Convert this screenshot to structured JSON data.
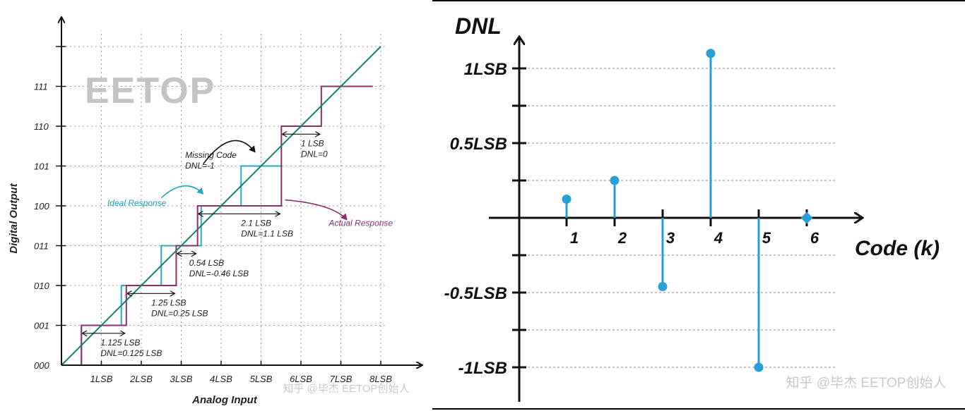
{
  "chart_data": [
    {
      "type": "line",
      "title": "",
      "xlabel": "Analog Input",
      "ylabel": "Digital Output",
      "watermark_logo": "EETOP",
      "x_tick_labels": [
        "1LSB",
        "2LSB",
        "3LSB",
        "4LSB",
        "5LSB",
        "6LSB",
        "7LSB",
        "8LSB"
      ],
      "y_tick_labels": [
        "000",
        "001",
        "010",
        "011",
        "100",
        "101",
        "110",
        "111"
      ],
      "xlim": [
        0,
        8
      ],
      "ylim": [
        0,
        8
      ],
      "grid": true,
      "series": [
        {
          "name": "Ideal Response",
          "color": "#0f7f6e",
          "x": [
            0,
            8
          ],
          "y": [
            0,
            8
          ]
        },
        {
          "name": "Actual Response",
          "color": "#8e2f6c",
          "x": [
            0.5,
            0.5,
            1.625,
            1.625,
            2.875,
            2.875,
            3.41,
            3.41,
            5.51,
            5.51,
            6.51,
            6.51,
            7.8
          ],
          "y": [
            0,
            1,
            1,
            2,
            2,
            3,
            3,
            4,
            4,
            6,
            6,
            7,
            7
          ]
        },
        {
          "name": "",
          "color": "#2ba8c4",
          "x": [
            0.5,
            0.5,
            1.5,
            1.5,
            2.5,
            2.5,
            3.5,
            3.5,
            4.5,
            4.5,
            5.5
          ],
          "y": [
            0,
            1,
            1,
            2,
            2,
            3,
            3,
            4,
            4,
            5,
            5
          ]
        }
      ],
      "annotations": [
        {
          "lines": [
            "1.125 LSB",
            "DNL=0.125 LSB"
          ],
          "x": 0.98,
          "y": 0.5
        },
        {
          "lines": [
            "1.25 LSB",
            "DNL=0.25 LSB"
          ],
          "x": 2.25,
          "y": 1.5
        },
        {
          "lines": [
            "0.54 LSB",
            "DNL=-0.46 LSB"
          ],
          "x": 3.2,
          "y": 2.5
        },
        {
          "lines": [
            "2.1 LSB",
            "DNL=1.1 LSB"
          ],
          "x": 4.5,
          "y": 3.5
        },
        {
          "lines": [
            "1 LSB",
            "DNL=0"
          ],
          "x": 6.0,
          "y": 5.5
        },
        {
          "lines": [
            "Missing Code",
            "DNL=-1"
          ],
          "x": 3.1,
          "y": 5.2
        },
        {
          "lines": [
            "Ideal Response"
          ],
          "x": 1.15,
          "y": 4.0
        },
        {
          "lines": [
            "Actual Response"
          ],
          "x": 7.5,
          "y": 3.5
        }
      ]
    },
    {
      "type": "stem",
      "title": "",
      "xlabel": "Code (k)",
      "ylabel": "DNL",
      "x_tick_labels": [
        "1",
        "2",
        "3",
        "4",
        "5",
        "6"
      ],
      "y_tick_labels": [
        "1LSB",
        "0.5LSB",
        "-0.5LSB",
        "-1LSB"
      ],
      "x": [
        1,
        2,
        3,
        4,
        5,
        6
      ],
      "values": [
        0.125,
        0.25,
        -0.46,
        1.1,
        -1,
        0
      ],
      "ylim": [
        -1,
        1
      ],
      "grid": true,
      "color": "#2a9fd6"
    }
  ],
  "watermark": "知乎 @毕杰 EETOP创始人"
}
